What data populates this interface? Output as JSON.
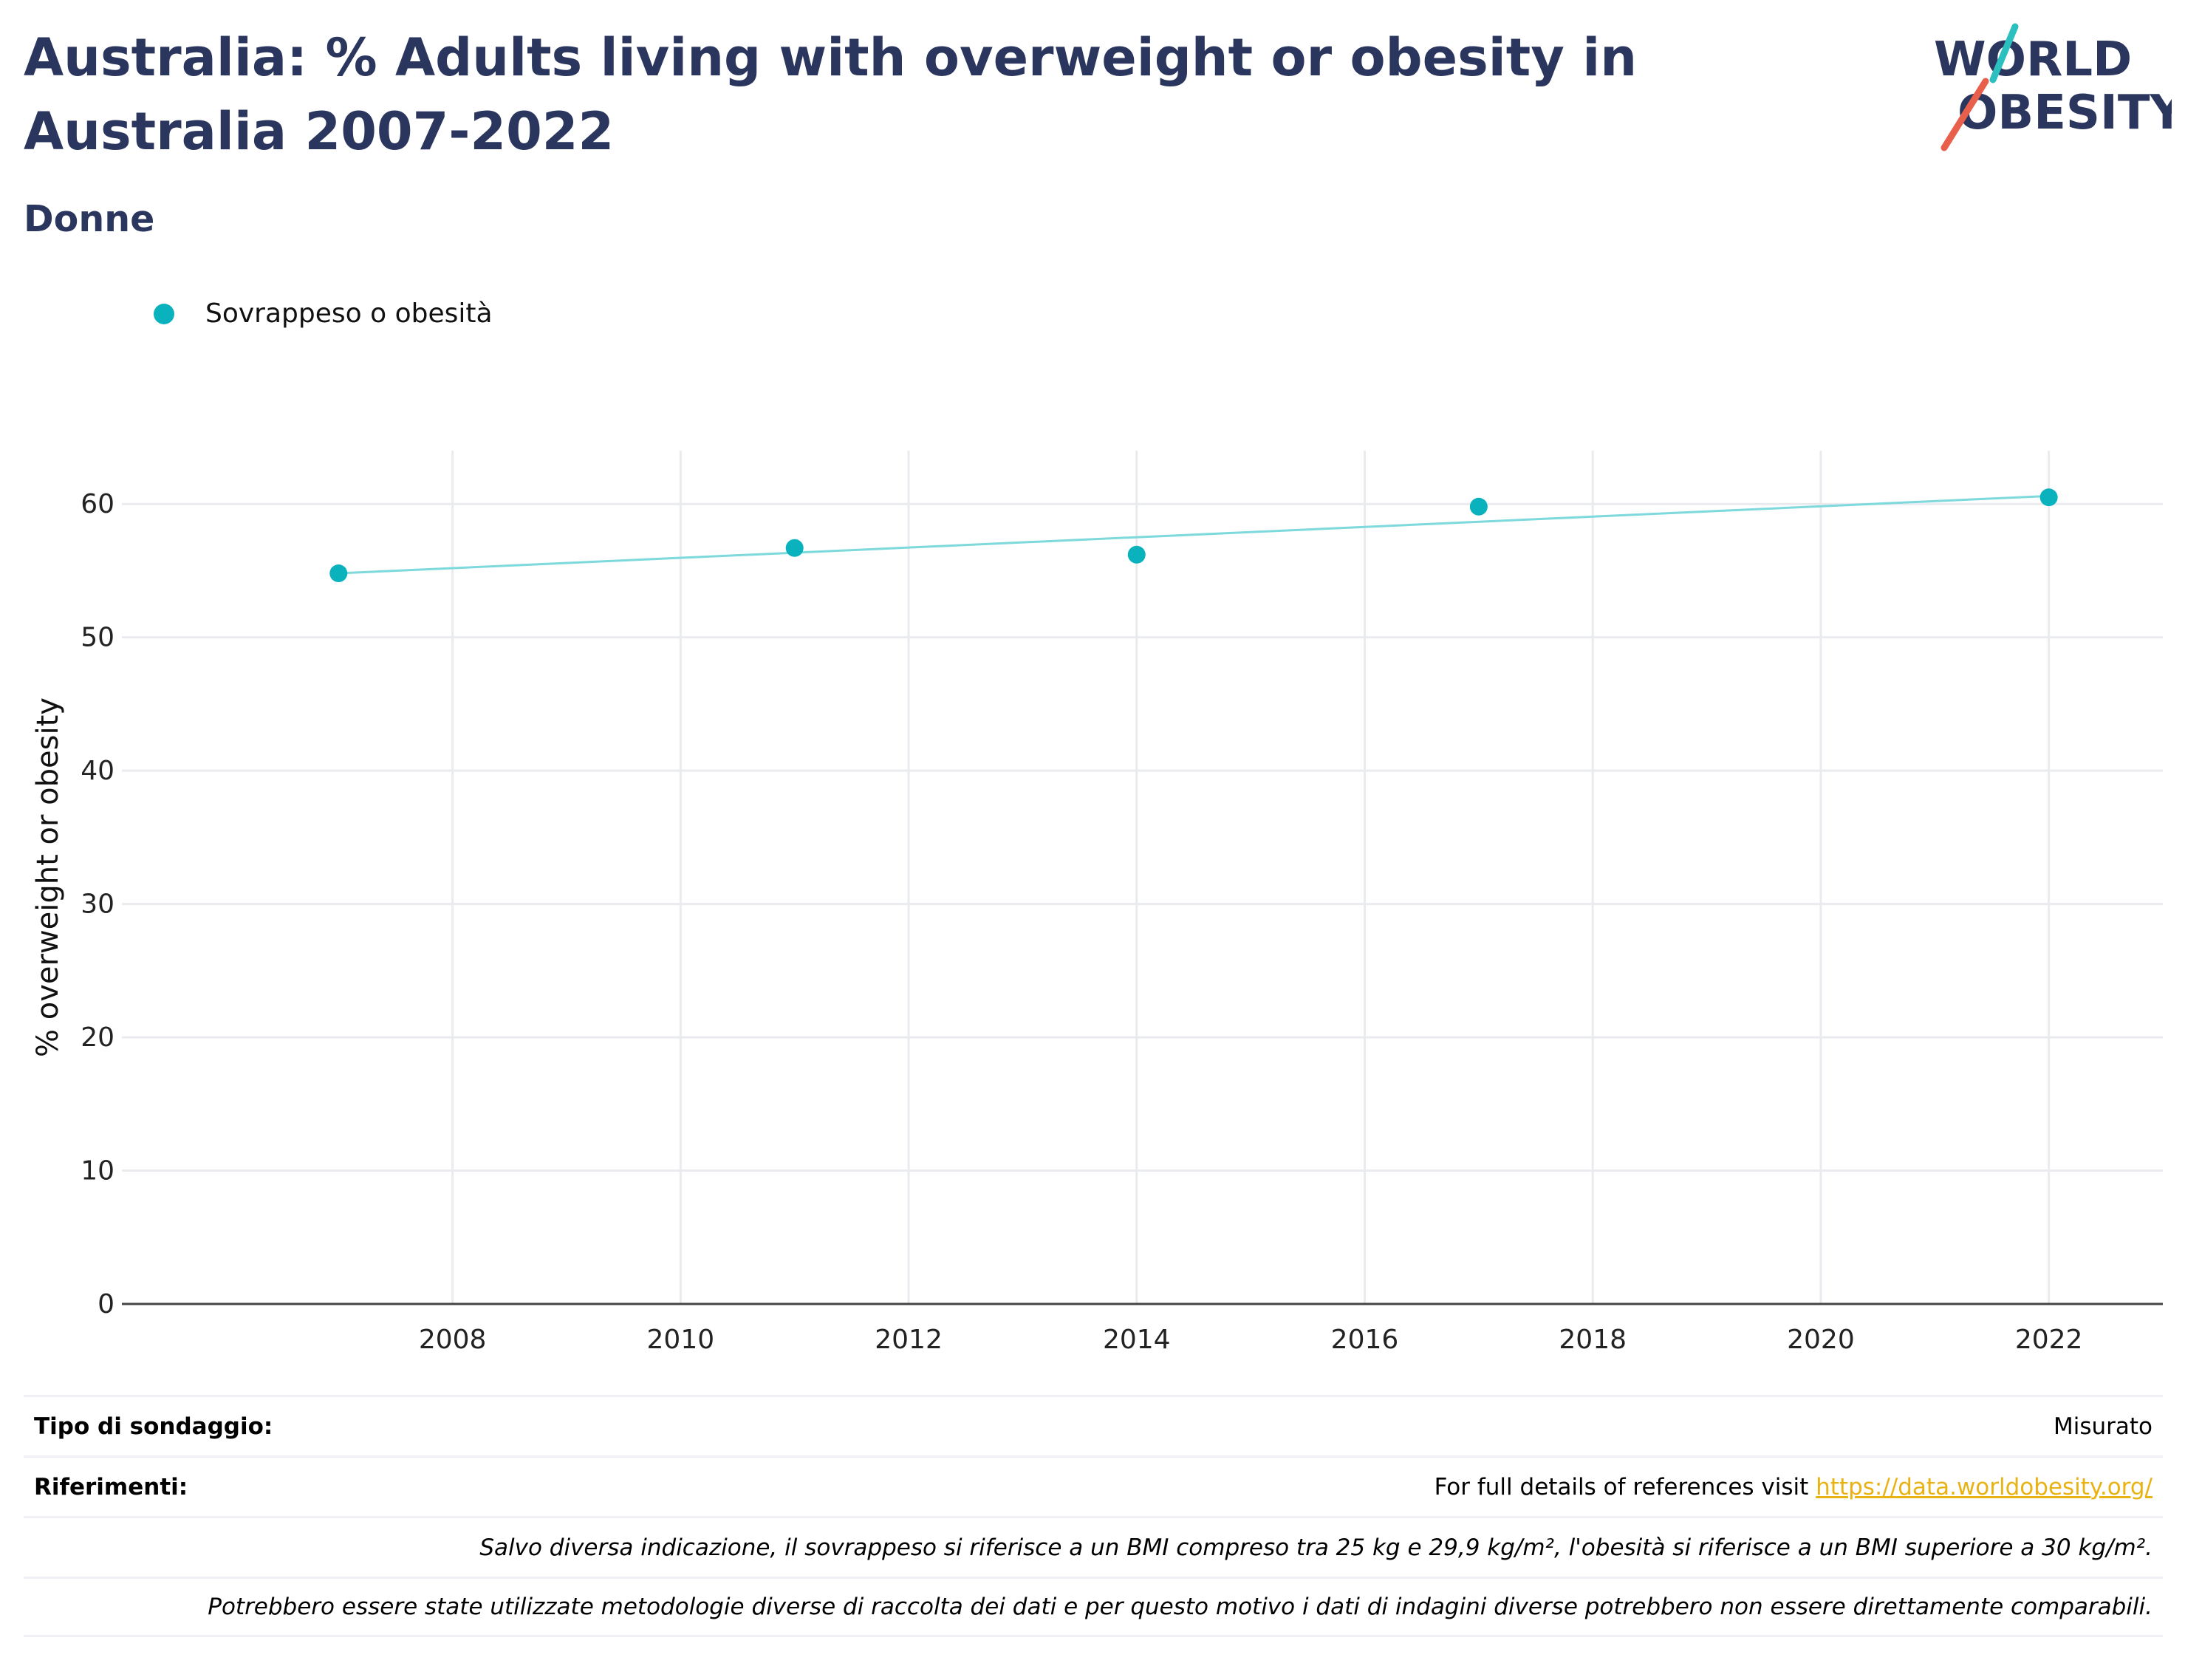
{
  "header": {
    "title": "Australia: % Adults living with overweight or obesity in Australia 2007-2022",
    "subtitle": "Donne"
  },
  "logo": {
    "line1": "WORLD",
    "line2": "OBESITY",
    "text_color": "#2b365e",
    "accent_teal": "#2bbfc0",
    "accent_red": "#e8604c"
  },
  "colors": {
    "marker": "#0ab2bd",
    "trend": "#7dd9dc",
    "grid": "#eaebef",
    "title": "#2b365e",
    "link": "#e9b213"
  },
  "chart_data": {
    "type": "scatter",
    "title": "Australia: % Adults living with overweight or obesity in Australia 2007-2022",
    "subtitle": "Donne",
    "xlabel": "",
    "ylabel": "% overweight or obesity",
    "xlim": [
      2005.1,
      2023.0
    ],
    "ylim": [
      0,
      64
    ],
    "xticks": [
      2008,
      2010,
      2012,
      2014,
      2016,
      2018,
      2020,
      2022
    ],
    "yticks": [
      0,
      10,
      20,
      30,
      40,
      50,
      60
    ],
    "grid": true,
    "legend_position": "top-left",
    "series": [
      {
        "name": "Sovrappeso o obesità",
        "points": [
          {
            "x": 2007,
            "y": 54.8
          },
          {
            "x": 2011,
            "y": 56.7
          },
          {
            "x": 2014,
            "y": 56.2
          },
          {
            "x": 2017,
            "y": 59.8
          },
          {
            "x": 2022,
            "y": 60.5
          }
        ],
        "trendline": {
          "x": [
            2007,
            2022
          ],
          "y": [
            54.8,
            60.6
          ]
        }
      }
    ]
  },
  "footer": {
    "survey_type_label": "Tipo di sondaggio:",
    "survey_type_value": "Misurato",
    "references_label": "Riferimenti:",
    "references_text": "For full details of references visit ",
    "references_link": "https://data.worldobesity.org/",
    "note1": "Salvo diversa indicazione, il sovrappeso si riferisce a un BMI compreso tra 25 kg e 29,9 kg/m², l'obesità si riferisce a un BMI superiore a 30 kg/m².",
    "note2": "Potrebbero essere state utilizzate metodologie diverse di raccolta dei dati e per questo motivo i dati di indagini diverse potrebbero non essere direttamente comparabili."
  }
}
